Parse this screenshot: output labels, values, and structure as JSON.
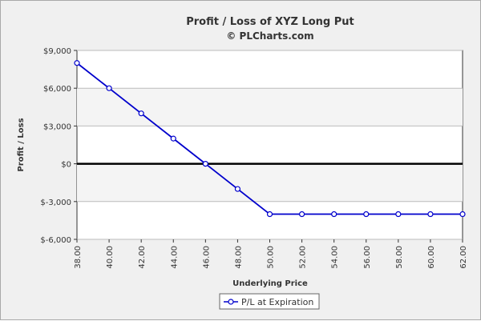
{
  "chart_data": {
    "type": "line",
    "title": "Profit / Loss of XYZ Long Put",
    "subtitle": "© PLCharts.com",
    "xlabel": "Underlying Price",
    "ylabel": "Profit / Loss",
    "x": [
      "38.00",
      "40.00",
      "42.00",
      "44.00",
      "46.00",
      "48.00",
      "50.00",
      "52.00",
      "54.00",
      "56.00",
      "58.00",
      "60.00",
      "62.00"
    ],
    "xlim": [
      38,
      62
    ],
    "ylim": [
      -6000,
      9000
    ],
    "yticks": [
      9000,
      6000,
      3000,
      0,
      -3000,
      -6000
    ],
    "ytick_labels": [
      "$9,000",
      "$6,000",
      "$3,000",
      "$0",
      "$-3,000",
      "$-6,000"
    ],
    "grid": true,
    "legend_position": "bottom-center",
    "series": [
      {
        "name": "P/L at Expiration",
        "color": "#0000cc",
        "values": [
          8000,
          6000,
          4000,
          2000,
          0,
          -2000,
          -4000,
          -4000,
          -4000,
          -4000,
          -4000,
          -4000,
          -4000
        ]
      }
    ]
  }
}
